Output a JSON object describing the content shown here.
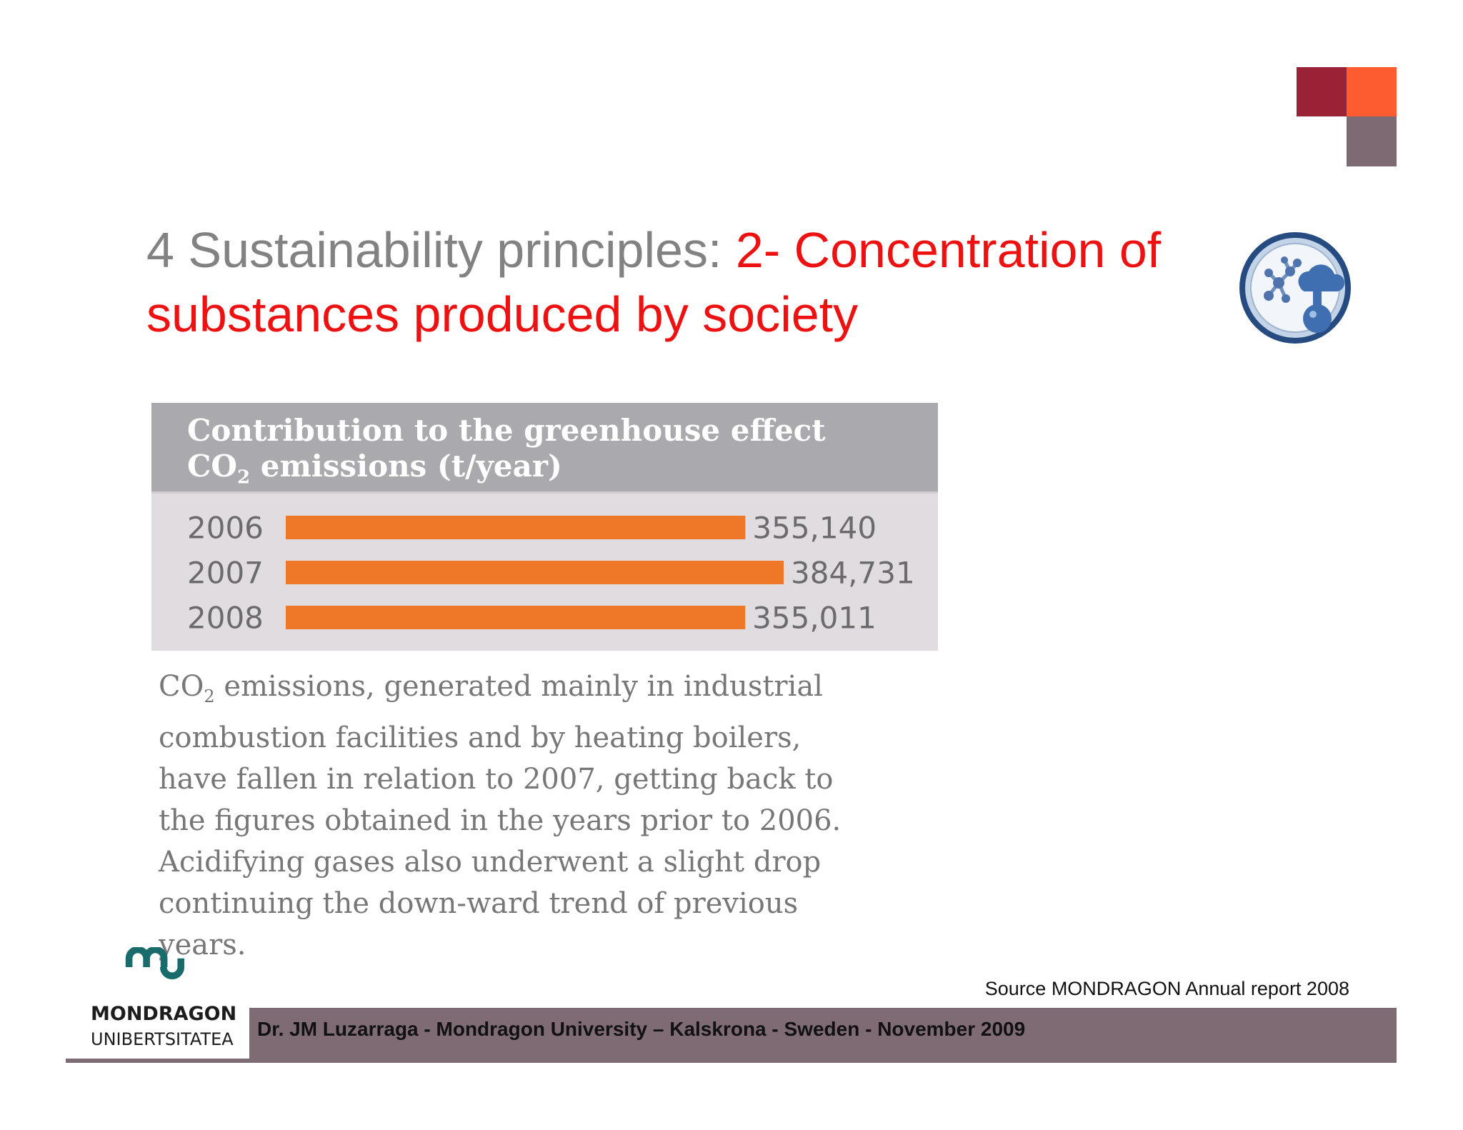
{
  "slide": {
    "title_part1": "4 Sustainability principles: ",
    "title_part2": "2- Concentration of",
    "title_part3": "substances produced by society",
    "colors": {
      "title_grey": "#828282",
      "title_red": "#ee1111",
      "accent_crimson": "#9b2236",
      "accent_orange": "#fd5b30",
      "accent_mauve": "#7e6a73"
    },
    "icon": "molecule-cloud-flask-icon"
  },
  "chart_data": {
    "type": "bar",
    "orientation": "horizontal",
    "title": "Contribution to the greenhouse effect",
    "subtitle_prefix": "CO",
    "subtitle_subscript": "2",
    "subtitle_suffix": " emissions (t/year)",
    "categories": [
      "2006",
      "2007",
      "2008"
    ],
    "values": [
      355140,
      384731,
      355011
    ],
    "value_labels": [
      "355,140",
      "384,731",
      "355,011"
    ],
    "bar_color": "#ee7728",
    "xlim": [
      0,
      384731
    ],
    "grid": false,
    "legend": "none"
  },
  "caption": {
    "prefix": "CO",
    "subscript": "2",
    "text": " emissions, generated mainly in industrial combustion facilities and by heating boilers, have fallen in relation to 2007, getting back to the figures obtained in the years prior to 2006. Acidifying gases also underwent a slight drop continuing the down-ward trend of previous years."
  },
  "footer": {
    "source": "Source MONDRAGON Annual report 2008",
    "credit": "Dr. JM Luzarraga - Mondragon University – Kalskrona - Sweden - November 2009",
    "band_color": "#7f6b73"
  },
  "logo": {
    "name": "MONDRAGON",
    "sub": "UNIBERTSITATEA",
    "color": "#1a6b6b"
  }
}
